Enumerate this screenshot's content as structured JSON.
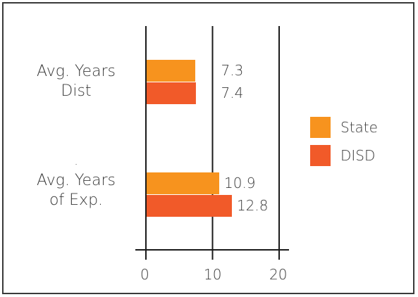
{
  "chart_data": {
    "type": "bar",
    "orientation": "horizontal",
    "categories": [
      "Avg. Years\nDist",
      "Avg. Years\nof Exp."
    ],
    "separator_text": ".",
    "series": [
      {
        "name": "State",
        "values": [
          7.3,
          10.9
        ],
        "labels": [
          "7.3",
          "10.9"
        ],
        "color": "#F7931E"
      },
      {
        "name": "DISD",
        "values": [
          7.4,
          12.8
        ],
        "labels": [
          "7.4",
          "12.8"
        ],
        "color": "#F15A29"
      }
    ],
    "xlim": [
      0,
      20
    ],
    "x_ticks": [
      "0",
      "10",
      "20"
    ],
    "grid": true,
    "legend": "right"
  }
}
